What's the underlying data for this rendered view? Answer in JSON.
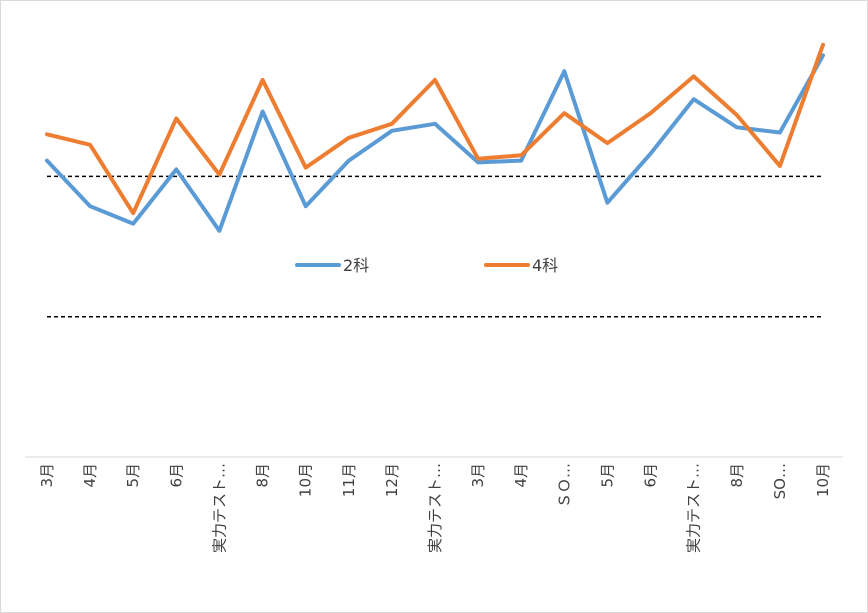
{
  "chart_data": {
    "type": "line",
    "categories": [
      "3月",
      "4月",
      "5月",
      "6月",
      "実力テスト…",
      "8月",
      "10月",
      "11月",
      "12月",
      "実力テスト…",
      "3月",
      "4月",
      "ＳＯ…",
      "5月",
      "6月",
      "実力テスト…",
      "8月",
      "SO…",
      "10月"
    ],
    "series": [
      {
        "name": "2科",
        "color": "#5b9bd5",
        "values": [
          0.09,
          -0.17,
          -0.27,
          0.04,
          -0.31,
          0.37,
          -0.17,
          0.09,
          0.26,
          0.3,
          0.08,
          0.09,
          0.6,
          -0.15,
          0.13,
          0.44,
          0.28,
          0.25,
          0.69
        ]
      },
      {
        "name": "4科",
        "color": "#ed7d31",
        "values": [
          0.24,
          0.18,
          -0.21,
          0.33,
          0.01,
          0.55,
          0.05,
          0.22,
          0.3,
          0.55,
          0.1,
          0.12,
          0.36,
          0.19,
          0.36,
          0.57,
          0.35,
          0.06,
          0.75
        ]
      }
    ],
    "reference_lines": [
      0,
      -0.8
    ],
    "ylim": [
      -1.6,
      1.0
    ],
    "gridlines": false,
    "legend_position": "center"
  }
}
